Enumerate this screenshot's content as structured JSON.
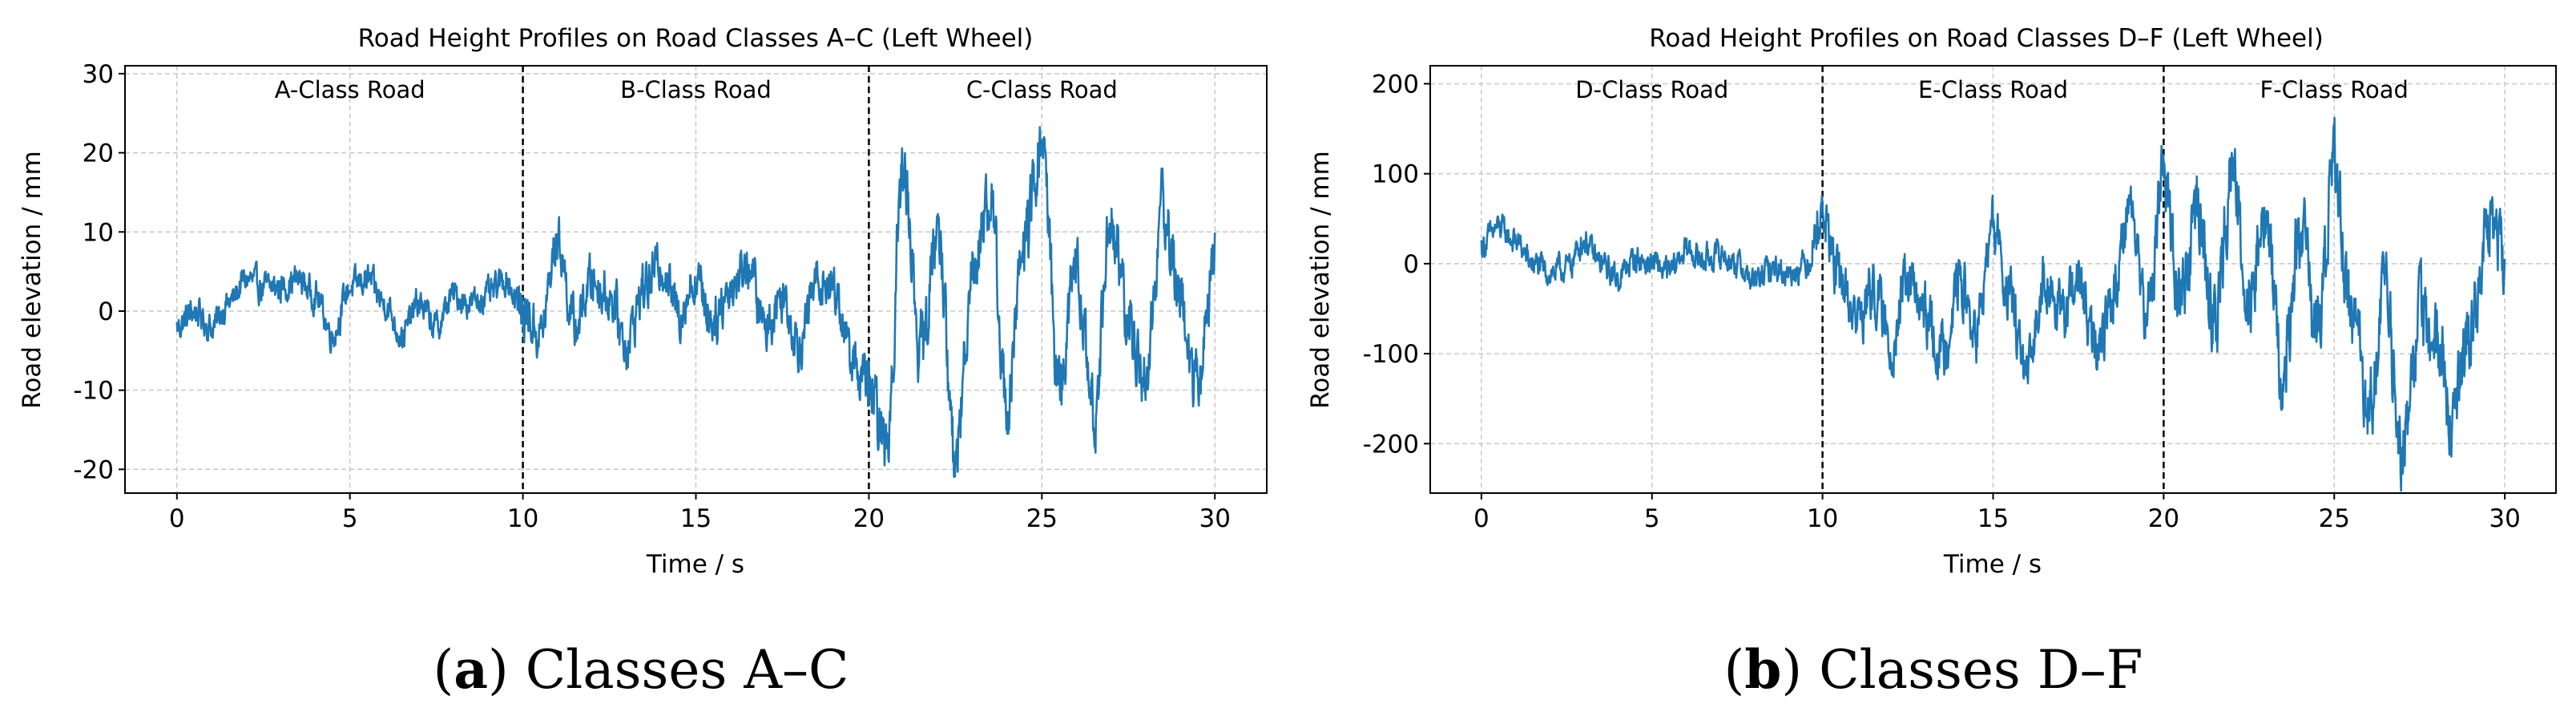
{
  "chart_data": [
    {
      "type": "line",
      "title": "Road Height Profiles on Road Classes A–C (Left Wheel)",
      "xlabel": "Time / s",
      "ylabel": "Road elevation / mm",
      "xlim": [
        -1.5,
        31.5
      ],
      "ylim": [
        -23,
        31
      ],
      "xticks": [
        0,
        5,
        10,
        15,
        20,
        25,
        30
      ],
      "xtick_labels": [
        "0",
        "5",
        "10",
        "15",
        "20",
        "25",
        "30"
      ],
      "yticks": [
        -20,
        -10,
        0,
        10,
        20,
        30
      ],
      "ytick_labels": [
        "-20",
        "-10",
        "0",
        "10",
        "20",
        "30"
      ],
      "grid": true,
      "dividers": [
        10,
        20
      ],
      "regions": [
        {
          "label": "A-Class Road",
          "x_center": 5
        },
        {
          "label": "B-Class Road",
          "x_center": 15
        },
        {
          "label": "C-Class Road",
          "x_center": 25
        }
      ],
      "series": [
        {
          "color": "#1f77b4",
          "x": [
            0,
            0.5,
            1,
            1.5,
            2,
            2.5,
            3,
            3.5,
            4,
            4.5,
            5,
            5.5,
            6,
            6.5,
            7,
            7.5,
            8,
            8.5,
            9,
            9.5,
            10,
            10.5,
            11,
            11.5,
            12,
            12.5,
            13,
            13.5,
            14,
            14.5,
            15,
            15.5,
            16,
            16.5,
            17,
            17.5,
            18,
            18.5,
            19,
            19.5,
            20,
            20.5,
            21,
            21.5,
            22,
            22.5,
            23,
            23.5,
            24,
            24.5,
            25,
            25.5,
            26,
            26.5,
            27,
            27.5,
            28,
            28.5,
            29,
            29.5,
            30
          ],
          "y": [
            -2,
            0,
            -2,
            1,
            4,
            3,
            3,
            4,
            2,
            -3,
            3,
            4,
            1,
            -3,
            1,
            -2,
            2,
            1,
            2,
            4,
            0,
            -3,
            9,
            -2,
            4,
            2,
            -4,
            3,
            6,
            0,
            4,
            -1,
            3,
            6,
            -2,
            2,
            -4,
            4,
            3,
            -6,
            -10,
            -17,
            18,
            -5,
            10,
            -19,
            6,
            14,
            -12,
            9,
            21,
            -9,
            5,
            -13,
            12,
            -2,
            -8,
            13,
            2,
            -10,
            8
          ],
          "envelope": [
            1.5,
            1.5,
            1.5,
            1.5,
            1.5,
            1.5,
            1.5,
            1.5,
            1.5,
            1.5,
            1.5,
            1.5,
            1.5,
            1.5,
            1.5,
            1.5,
            1.5,
            1.5,
            1.5,
            1.5,
            2.5,
            2.5,
            2.5,
            2.5,
            2.5,
            2.5,
            2.5,
            2.5,
            2.5,
            2.5,
            2.5,
            2.5,
            2.5,
            2.5,
            2.5,
            2.5,
            2.5,
            2.5,
            2.5,
            2.5,
            3.5,
            3.5,
            3.5,
            3.5,
            3.5,
            3.5,
            3.5,
            3.5,
            3.5,
            3.5,
            3.5,
            3.5,
            3.5,
            3.5,
            3.5,
            3.5,
            3.5,
            3.5,
            3.5,
            3.5,
            3.5
          ]
        }
      ]
    },
    {
      "type": "line",
      "title": "Road Height Profiles on Road Classes D–F (Left Wheel)",
      "xlabel": "Time / s",
      "ylabel": "Road elevation / mm",
      "xlim": [
        -1.5,
        31.5
      ],
      "ylim": [
        -255,
        220
      ],
      "xticks": [
        0,
        5,
        10,
        15,
        20,
        25,
        30
      ],
      "xtick_labels": [
        "0",
        "5",
        "10",
        "15",
        "20",
        "25",
        "30"
      ],
      "yticks": [
        -200,
        -100,
        0,
        100,
        200
      ],
      "ytick_labels": [
        "-200",
        "-100",
        "0",
        "100",
        "200"
      ],
      "grid": true,
      "dividers": [
        10,
        20
      ],
      "regions": [
        {
          "label": "D-Class Road",
          "x_center": 5
        },
        {
          "label": "E-Class Road",
          "x_center": 15
        },
        {
          "label": "F-Class Road",
          "x_center": 25
        }
      ],
      "series": [
        {
          "color": "#1f77b4",
          "x": [
            0,
            0.5,
            1,
            1.5,
            2,
            2.5,
            3,
            3.5,
            4,
            4.5,
            5,
            5.5,
            6,
            6.5,
            7,
            7.5,
            8,
            8.5,
            9,
            9.5,
            10,
            10.5,
            11,
            11.5,
            12,
            12.5,
            13,
            13.5,
            14,
            14.5,
            15,
            15.5,
            16,
            16.5,
            17,
            17.5,
            18,
            18.5,
            19,
            19.5,
            20,
            20.5,
            21,
            21.5,
            22,
            22.5,
            23,
            23.5,
            24,
            24.5,
            25,
            25.5,
            26,
            26.5,
            27,
            27.5,
            28,
            28.5,
            29,
            29.5,
            30
          ],
          "y": [
            20,
            40,
            25,
            0,
            -10,
            -5,
            25,
            0,
            -15,
            5,
            0,
            -10,
            15,
            5,
            10,
            0,
            -20,
            -5,
            -10,
            0,
            55,
            -20,
            -60,
            -30,
            -90,
            -20,
            -60,
            -100,
            -20,
            -80,
            40,
            -40,
            -130,
            -10,
            -60,
            -20,
            -100,
            -40,
            70,
            -60,
            100,
            -40,
            60,
            -70,
            100,
            -30,
            50,
            -130,
            40,
            -80,
            110,
            -50,
            -150,
            -40,
            -210,
            -60,
            -90,
            -170,
            -70,
            40,
            10
          ],
          "envelope": [
            12,
            12,
            12,
            12,
            12,
            12,
            12,
            12,
            12,
            12,
            12,
            12,
            12,
            12,
            12,
            12,
            12,
            12,
            12,
            12,
            25,
            25,
            25,
            25,
            25,
            25,
            25,
            25,
            25,
            25,
            25,
            25,
            25,
            25,
            25,
            25,
            25,
            25,
            25,
            25,
            35,
            35,
            35,
            35,
            35,
            35,
            35,
            35,
            35,
            35,
            35,
            35,
            35,
            35,
            35,
            35,
            35,
            35,
            35,
            35,
            35
          ]
        }
      ]
    }
  ],
  "captions": [
    {
      "letter": "a",
      "text": ") Classes A–C",
      "open": "("
    },
    {
      "letter": "b",
      "text": ") Classes D–F",
      "open": "("
    }
  ]
}
